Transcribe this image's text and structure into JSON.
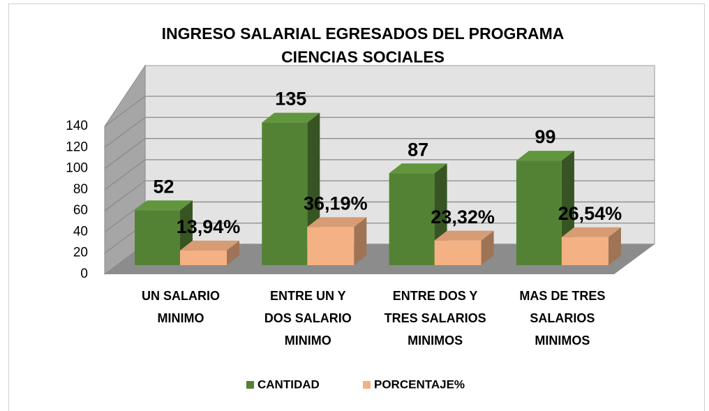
{
  "chart_data": {
    "type": "bar3d",
    "title": "INGRESO SALARIAL EGRESADOS DEL PROGRAMA\nCIENCIAS SOCIALES",
    "categories": [
      "UN SALARIO\nMINIMO",
      "ENTRE UN Y\nDOS SALARIO\nMINIMO",
      "ENTRE DOS Y\nTRES SALARIOS\nMINIMOS",
      "MAS DE TRES\nSALARIOS\nMINIMOS"
    ],
    "series": [
      {
        "name": "CANTIDAD",
        "color": "#548235",
        "values": [
          52,
          135,
          87,
          99
        ]
      },
      {
        "name": "PORCENTAJE%",
        "color": "#f4b183",
        "values": [
          13.94,
          36.19,
          23.32,
          26.54
        ],
        "value_labels": [
          "13,94%",
          "36,19%",
          "23,32%",
          "26,54%"
        ]
      }
    ],
    "ylim": [
      0,
      140
    ],
    "yticks": [
      0,
      20,
      40,
      60,
      80,
      100,
      120,
      140
    ],
    "grid": true,
    "legend": "bottom"
  }
}
